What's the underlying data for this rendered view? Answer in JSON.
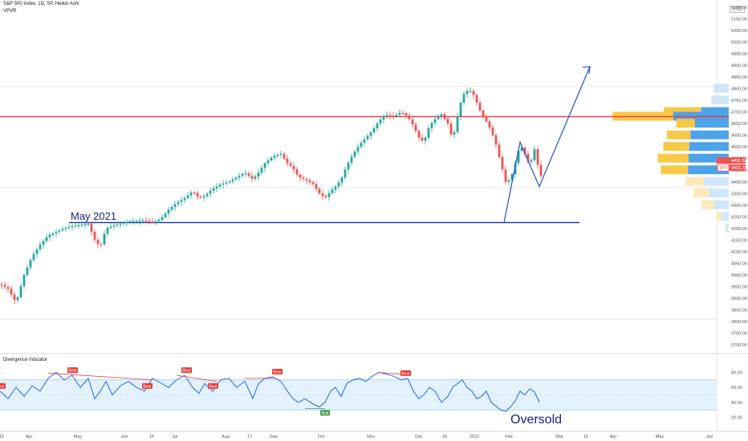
{
  "header": {
    "title": "S&P 500 Index, 1D, SP, Heikin Ashi",
    "indicator": "VPVR",
    "currency": "USD",
    "divergence_title": "Divergence Indicator"
  },
  "colors": {
    "up": "#26a69a",
    "down": "#ef5350",
    "resistance": "#f23645",
    "support": "#1a2fa0",
    "projection": "#1f4fd6",
    "vp_up": "#f7c948",
    "vp_down": "#4da3ea",
    "vp_up_light": "#fde9b8",
    "vp_down_light": "#cfe6fb",
    "rsi": "#2962ff",
    "bear": "#e53935",
    "bull": "#43a047",
    "band": "#e3f2fd"
  },
  "price_axis": {
    "labels": [
      "5150.00",
      "5100.00",
      "5050.00",
      "5000.00",
      "4950.00",
      "4900.00",
      "4850.00",
      "4800.00",
      "4750.00",
      "4700.00",
      "4650.00",
      "4600.00",
      "4550.00",
      "4500.00",
      "4450.00",
      "4400.00",
      "4350.00",
      "4300.00",
      "4250.00",
      "4200.00",
      "4150.00",
      "4100.00",
      "4050.00",
      "4000.00",
      "3950.00",
      "3900.00",
      "3850.00",
      "3800.00",
      "3750.00",
      "3700.00"
    ],
    "last_price_1": "4491.66",
    "last_price_2": "4401.33",
    "spx_badge": "SPX"
  },
  "time_axis": {
    "labels": [
      "16",
      "Apr",
      "May",
      "Jun",
      "16",
      "Jul",
      "Aug",
      "17",
      "Sep",
      "Oct",
      "Nov",
      "Dec",
      "16",
      "2022",
      "Feb",
      "Mar",
      "16",
      "Apr",
      "May",
      "Jun"
    ]
  },
  "annotations": {
    "support_label": "May 2021",
    "oversold_label": "Oversold"
  },
  "rsi_axis": {
    "labels": [
      "80.00",
      "60.00",
      "40.00",
      "20.00"
    ]
  },
  "signals": {
    "bear": "Bear",
    "bull": "Bull"
  },
  "chart_data": {
    "type": "candlestick",
    "title": "S&P 500 Index, 1D, SP, Heikin Ashi",
    "ylim": [
      3700,
      5150
    ],
    "resistance_level": 4680,
    "support_level": 4225,
    "price_path": [
      [
        0,
        3960
      ],
      [
        10,
        3940
      ],
      [
        20,
        3880
      ],
      [
        30,
        4000
      ],
      [
        40,
        4080
      ],
      [
        50,
        4130
      ],
      [
        60,
        4170
      ],
      [
        70,
        4185
      ],
      [
        80,
        4200
      ],
      [
        90,
        4210
      ],
      [
        100,
        4215
      ],
      [
        110,
        4220
      ],
      [
        118,
        4150
      ],
      [
        125,
        4120
      ],
      [
        132,
        4200
      ],
      [
        140,
        4210
      ],
      [
        150,
        4220
      ],
      [
        160,
        4230
      ],
      [
        170,
        4232
      ],
      [
        180,
        4235
      ],
      [
        190,
        4225
      ],
      [
        200,
        4240
      ],
      [
        210,
        4280
      ],
      [
        220,
        4310
      ],
      [
        230,
        4330
      ],
      [
        240,
        4360
      ],
      [
        248,
        4330
      ],
      [
        255,
        4340
      ],
      [
        265,
        4370
      ],
      [
        275,
        4390
      ],
      [
        285,
        4400
      ],
      [
        295,
        4420
      ],
      [
        305,
        4440
      ],
      [
        315,
        4410
      ],
      [
        322,
        4440
      ],
      [
        330,
        4480
      ],
      [
        340,
        4510
      ],
      [
        350,
        4520
      ],
      [
        358,
        4480
      ],
      [
        365,
        4460
      ],
      [
        372,
        4420
      ],
      [
        380,
        4410
      ],
      [
        390,
        4390
      ],
      [
        398,
        4350
      ],
      [
        405,
        4330
      ],
      [
        412,
        4360
      ],
      [
        418,
        4380
      ],
      [
        425,
        4410
      ],
      [
        432,
        4470
      ],
      [
        440,
        4520
      ],
      [
        448,
        4560
      ],
      [
        456,
        4590
      ],
      [
        464,
        4620
      ],
      [
        472,
        4660
      ],
      [
        480,
        4690
      ],
      [
        490,
        4680
      ],
      [
        500,
        4700
      ],
      [
        508,
        4680
      ],
      [
        515,
        4640
      ],
      [
        522,
        4590
      ],
      [
        528,
        4570
      ],
      [
        535,
        4640
      ],
      [
        542,
        4670
      ],
      [
        550,
        4690
      ],
      [
        558,
        4650
      ],
      [
        564,
        4580
      ],
      [
        570,
        4680
      ],
      [
        576,
        4770
      ],
      [
        582,
        4790
      ],
      [
        588,
        4790
      ],
      [
        594,
        4740
      ],
      [
        600,
        4690
      ],
      [
        606,
        4660
      ],
      [
        612,
        4620
      ],
      [
        618,
        4560
      ],
      [
        624,
        4480
      ],
      [
        630,
        4400
      ],
      [
        636,
        4410
      ],
      [
        642,
        4480
      ],
      [
        648,
        4560
      ],
      [
        654,
        4520
      ],
      [
        660,
        4470
      ],
      [
        666,
        4540
      ],
      [
        672,
        4440
      ],
      [
        676,
        4410
      ]
    ],
    "projection": [
      [
        628,
        4225
      ],
      [
        648,
        4570
      ],
      [
        672,
        4380
      ],
      [
        735,
        4895
      ]
    ],
    "volume_profile": [
      {
        "price": 4800,
        "up": 0.0,
        "down": 0.24,
        "light": true
      },
      {
        "price": 4750,
        "up": 0.0,
        "down": 0.28,
        "light": true
      },
      {
        "price": 4700,
        "up": 0.6,
        "down": 0.45,
        "light": false
      },
      {
        "price": 4680,
        "up": 0.98,
        "down": 0.9,
        "light": false
      },
      {
        "price": 4650,
        "up": 0.3,
        "down": 0.55,
        "light": false
      },
      {
        "price": 4600,
        "up": 0.38,
        "down": 0.62,
        "light": false
      },
      {
        "price": 4550,
        "up": 0.42,
        "down": 0.64,
        "light": false
      },
      {
        "price": 4500,
        "up": 0.5,
        "down": 0.65,
        "light": false
      },
      {
        "price": 4450,
        "up": 0.44,
        "down": 0.66,
        "light": false
      },
      {
        "price": 4400,
        "up": 0.3,
        "down": 0.4,
        "light": true
      },
      {
        "price": 4350,
        "up": 0.25,
        "down": 0.32,
        "light": true
      },
      {
        "price": 4300,
        "up": 0.2,
        "down": 0.24,
        "light": true
      },
      {
        "price": 4250,
        "up": 0.08,
        "down": 0.12,
        "light": true
      },
      {
        "price": 4200,
        "up": 0.02,
        "down": 0.04,
        "light": true
      }
    ],
    "divergence": {
      "ylim": [
        10,
        90
      ],
      "band": [
        30,
        70
      ],
      "midline": 50,
      "rsi": [
        [
          0,
          55
        ],
        [
          10,
          45
        ],
        [
          20,
          60
        ],
        [
          30,
          48
        ],
        [
          40,
          62
        ],
        [
          50,
          55
        ],
        [
          60,
          72
        ],
        [
          70,
          80
        ],
        [
          80,
          70
        ],
        [
          90,
          76
        ],
        [
          100,
          60
        ],
        [
          110,
          72
        ],
        [
          118,
          45
        ],
        [
          125,
          55
        ],
        [
          132,
          68
        ],
        [
          140,
          50
        ],
        [
          150,
          62
        ],
        [
          160,
          68
        ],
        [
          170,
          60
        ],
        [
          180,
          55
        ],
        [
          190,
          72
        ],
        [
          200,
          66
        ],
        [
          210,
          60
        ],
        [
          220,
          70
        ],
        [
          230,
          76
        ],
        [
          240,
          60
        ],
        [
          248,
          52
        ],
        [
          255,
          65
        ],
        [
          265,
          55
        ],
        [
          275,
          70
        ],
        [
          285,
          72
        ],
        [
          295,
          60
        ],
        [
          305,
          68
        ],
        [
          315,
          45
        ],
        [
          322,
          65
        ],
        [
          330,
          72
        ],
        [
          340,
          74
        ],
        [
          350,
          68
        ],
        [
          358,
          55
        ],
        [
          365,
          45
        ],
        [
          372,
          40
        ],
        [
          380,
          45
        ],
        [
          390,
          38
        ],
        [
          398,
          34
        ],
        [
          405,
          40
        ],
        [
          412,
          55
        ],
        [
          418,
          60
        ],
        [
          425,
          48
        ],
        [
          432,
          65
        ],
        [
          440,
          70
        ],
        [
          448,
          72
        ],
        [
          456,
          68
        ],
        [
          464,
          75
        ],
        [
          472,
          80
        ],
        [
          480,
          78
        ],
        [
          490,
          75
        ],
        [
          500,
          70
        ],
        [
          508,
          72
        ],
        [
          515,
          55
        ],
        [
          522,
          45
        ],
        [
          528,
          50
        ],
        [
          535,
          60
        ],
        [
          542,
          55
        ],
        [
          550,
          40
        ],
        [
          558,
          48
        ],
        [
          564,
          60
        ],
        [
          570,
          65
        ],
        [
          576,
          70
        ],
        [
          582,
          60
        ],
        [
          588,
          55
        ],
        [
          594,
          45
        ],
        [
          600,
          48
        ],
        [
          606,
          55
        ],
        [
          612,
          40
        ],
        [
          618,
          35
        ],
        [
          624,
          30
        ],
        [
          630,
          28
        ],
        [
          636,
          34
        ],
        [
          642,
          42
        ],
        [
          648,
          55
        ],
        [
          654,
          50
        ],
        [
          660,
          58
        ],
        [
          666,
          54
        ],
        [
          672,
          40
        ]
      ],
      "bear_lines": [
        [
          [
            60,
            79
          ],
          [
            190,
            70
          ]
        ],
        [
          [
            220,
            76
          ],
          [
            270,
            68
          ]
        ],
        [
          [
            305,
            72
          ],
          [
            345,
            72
          ]
        ],
        [
          [
            470,
            80
          ],
          [
            505,
            77
          ]
        ]
      ],
      "bull_line": [
        [
          380,
          32
        ],
        [
          405,
          32
        ]
      ],
      "bear_marks": [
        0,
        90,
        183,
        232,
        265,
        345,
        505
      ],
      "bull_marks": [
        405
      ]
    }
  }
}
